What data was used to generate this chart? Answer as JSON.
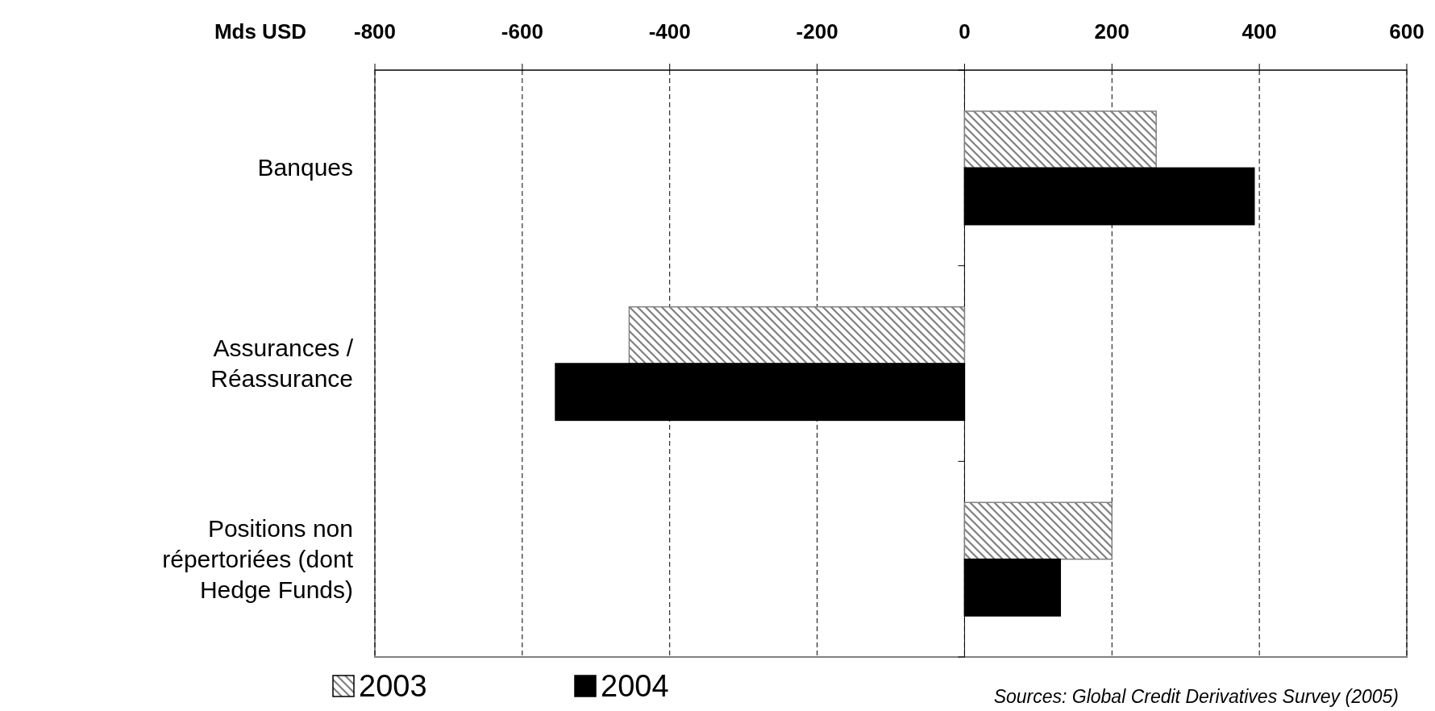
{
  "chart_data": {
    "type": "bar",
    "orientation": "horizontal",
    "xlabel": "Mds USD",
    "categories": [
      "Banques",
      "Assurances / Réassurance",
      "Positions non répertoriées (dont Hedge Funds)"
    ],
    "series": [
      {
        "name": "2003",
        "color": "#808080",
        "values": [
          260,
          -455,
          200
        ]
      },
      {
        "name": "2004",
        "color": "#000000",
        "values": [
          393,
          -555,
          130
        ]
      }
    ],
    "xlim": [
      -800,
      600
    ],
    "xticks": [
      -800,
      -600,
      -400,
      -200,
      0,
      200,
      400,
      600
    ],
    "grid": "x",
    "legend": "bottom",
    "annotations": [
      "Sources: Global Credit Derivatives Survey (2005)"
    ]
  }
}
